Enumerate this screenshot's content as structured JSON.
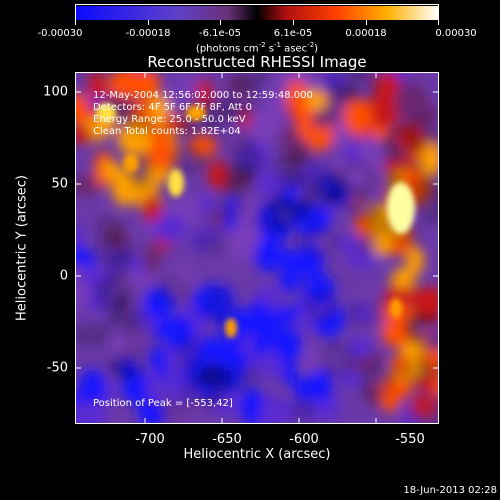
{
  "colorbar": {
    "tick_labels": [
      "-0.00030",
      "-0.00018",
      "-6.1e-05",
      "6.1e-05",
      "0.00018",
      "0.00030"
    ],
    "units_prefix": "(photons cm",
    "units_exp1": "-2",
    "units_mid": " s",
    "units_exp2": "-1",
    "units_suffix": " asec",
    "units_exp3": "-2",
    "units_close": ")"
  },
  "title": "Reconstructed RHESSI Image",
  "annotations": {
    "time_range": "12-May-2004 12:56:02.000 to 12:59:48.000",
    "detectors": "Detectors: 4F 5F 6F 7F 8F, Att 0",
    "energy_range": "Energy Range: 25.0 - 50.0 keV",
    "method": "Clean     Total counts: 1.82E+04",
    "peak": "Position of Peak = [-553,42]"
  },
  "x_axis": {
    "label": "Heliocentric X (arcsec)",
    "ticks": [
      "-700",
      "-650",
      "-600",
      "-550"
    ],
    "range": [
      -736,
      -542
    ]
  },
  "y_axis": {
    "label": "Heliocentric Y (arcsec)",
    "ticks": [
      "100",
      "50",
      "0",
      "-50"
    ],
    "range": [
      -84,
      104
    ]
  },
  "timestamp": "18-Jun-2013 02:28",
  "colors": {
    "background": "#000000",
    "colormap": [
      "#1818ff",
      "#5a2cd0",
      "#7a3cb8",
      "#6a2870",
      "#c81818",
      "#ff5000",
      "#ffa000",
      "#ffe040",
      "#ffffa0"
    ]
  }
}
